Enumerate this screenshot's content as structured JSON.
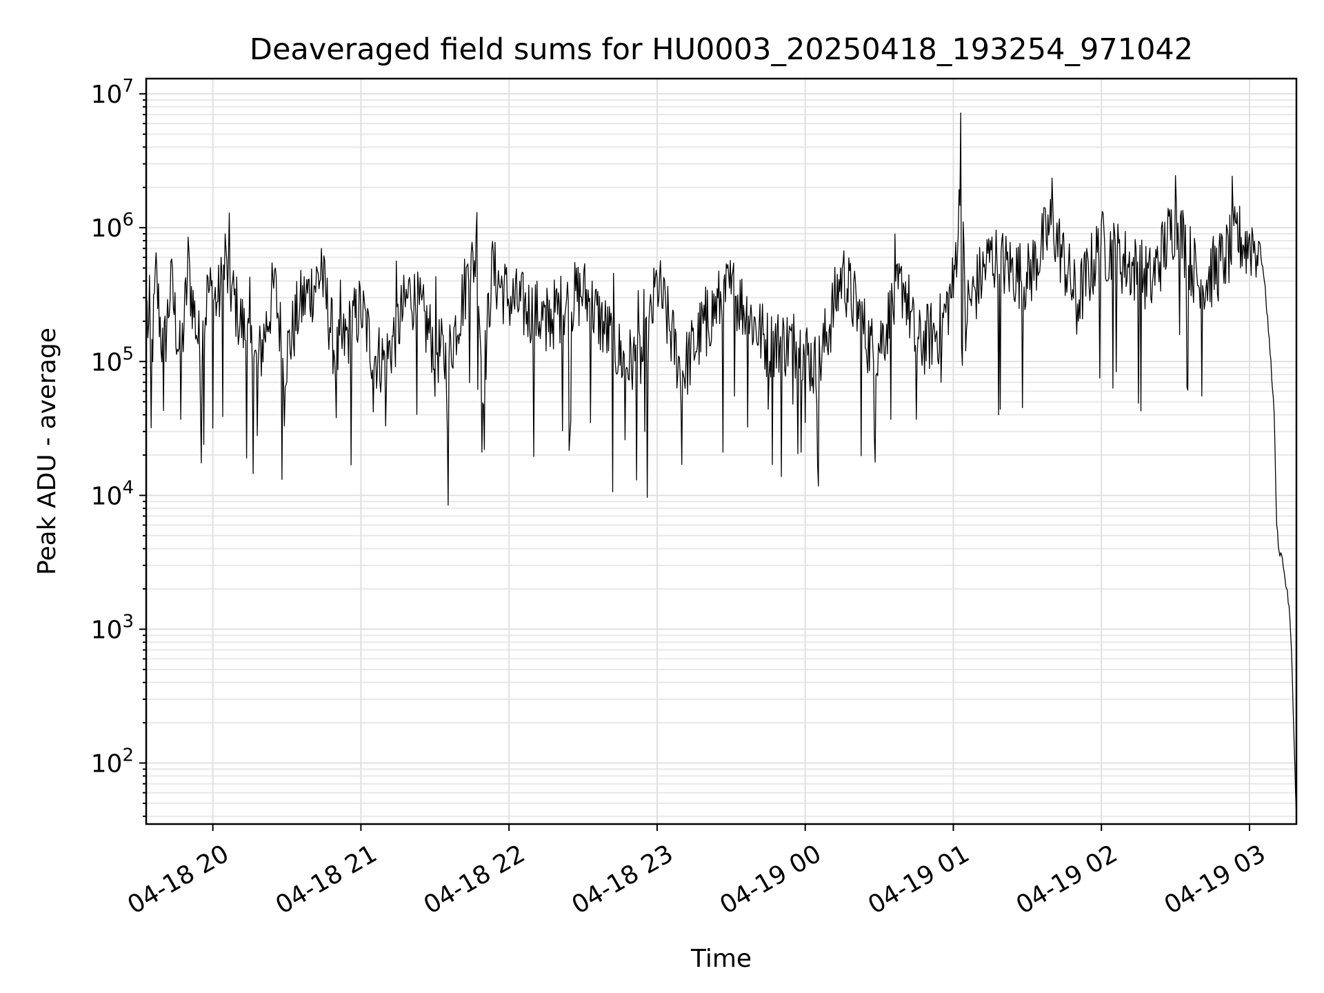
{
  "chart_data": {
    "type": "line",
    "title": "Deaveraged field sums for HU0003_20250418_193254_971042",
    "xlabel": "Time",
    "ylabel": "Peak ADU - average",
    "yscale": "log",
    "ylim": [
      35,
      13000000
    ],
    "xlim": [
      "04-18 19:33",
      "04-19 03:19"
    ],
    "grid": true,
    "x_tick_labels": [
      "04-18 20",
      "04-18 21",
      "04-18 22",
      "04-18 23",
      "04-19 00",
      "04-19 01",
      "04-19 02",
      "04-19 03"
    ],
    "y_tick_labels": [
      {
        "value": 100,
        "base": "10",
        "exp": "2"
      },
      {
        "value": 1000,
        "base": "10",
        "exp": "3"
      },
      {
        "value": 10000,
        "base": "10",
        "exp": "4"
      },
      {
        "value": 100000,
        "base": "10",
        "exp": "5"
      },
      {
        "value": 1000000,
        "base": "10",
        "exp": "6"
      },
      {
        "value": 10000000,
        "base": "10",
        "exp": "7"
      }
    ],
    "series": [
      {
        "color": "#000000",
        "points": [
          [
            "04-18 19:33",
            300000
          ],
          [
            "04-18 19:35",
            32000
          ],
          [
            "04-18 19:37",
            650000
          ],
          [
            "04-18 19:40",
            43000
          ],
          [
            "04-18 19:43",
            560000
          ],
          [
            "04-18 19:47",
            37000
          ],
          [
            "04-18 19:50",
            850000
          ],
          [
            "04-18 19:55",
            47000
          ],
          [
            "04-18 19:58",
            430000
          ],
          [
            "04-18 20:02",
            280000
          ],
          [
            "04-18 20:05",
            900000
          ],
          [
            "04-18 20:10",
            200000
          ],
          [
            "04-18 20:18",
            28000
          ],
          [
            "04-18 20:25",
            480000
          ],
          [
            "04-18 20:29",
            33000
          ],
          [
            "04-18 20:35",
            220000
          ],
          [
            "04-18 20:44",
            700000
          ],
          [
            "04-18 20:50",
            38000
          ],
          [
            "04-18 21:00",
            210000
          ],
          [
            "04-18 21:05",
            42000
          ],
          [
            "04-18 21:10",
            33000
          ],
          [
            "04-18 21:20",
            360000
          ],
          [
            "04-18 21:30",
            55000
          ],
          [
            "04-18 21:35",
            31000
          ],
          [
            "04-18 21:43",
            520000
          ],
          [
            "04-18 21:47",
            1300000
          ],
          [
            "04-18 21:49",
            21000
          ],
          [
            "04-18 21:50",
            22000
          ],
          [
            "04-18 21:53",
            680000
          ],
          [
            "04-18 22:00",
            260000
          ],
          [
            "04-18 22:15",
            120000
          ],
          [
            "04-18 22:30",
            320000
          ],
          [
            "04-18 22:47",
            26000
          ],
          [
            "04-18 22:55",
            30000
          ],
          [
            "04-18 23:00",
            420000
          ],
          [
            "04-18 23:10",
            17000
          ],
          [
            "04-18 23:20",
            110000
          ],
          [
            "04-18 23:30",
            320000
          ],
          [
            "04-18 23:45",
            44000
          ],
          [
            "04-18 23:55",
            48000
          ],
          [
            "04-19 00:00",
            35000
          ],
          [
            "04-19 00:05",
            17000
          ],
          [
            "04-19 00:15",
            500000
          ],
          [
            "04-19 00:28",
            28000
          ],
          [
            "04-19 00:40",
            360000
          ],
          [
            "04-19 00:45",
            37000
          ],
          [
            "04-19 00:55",
            70000
          ],
          [
            "04-19 01:00",
            300000
          ],
          [
            "04-19 01:03",
            7200000
          ],
          [
            "04-19 01:05",
            120000
          ],
          [
            "04-19 01:15",
            800000
          ],
          [
            "04-19 01:30",
            350000
          ],
          [
            "04-19 01:40",
            2350000
          ],
          [
            "04-19 01:50",
            160000
          ],
          [
            "04-19 02:00",
            1100000
          ],
          [
            "04-19 02:20",
            300000
          ],
          [
            "04-19 02:30",
            2450000
          ],
          [
            "04-19 02:40",
            250000
          ],
          [
            "04-19 02:50",
            600000
          ],
          [
            "04-19 02:55",
            1300000
          ],
          [
            "04-19 03:00",
            900000
          ],
          [
            "04-19 03:01",
            1000000
          ],
          [
            "04-19 03:04",
            780000
          ],
          [
            "04-19 03:06",
            400000
          ],
          [
            "04-19 03:08",
            150000
          ],
          [
            "04-19 03:10",
            40000
          ],
          [
            "04-19 03:11",
            6000
          ],
          [
            "04-19 03:12",
            3800
          ],
          [
            "04-19 03:13",
            3600
          ],
          [
            "04-19 03:14",
            2700
          ],
          [
            "04-19 03:15",
            2000
          ],
          [
            "04-19 03:16",
            1500
          ],
          [
            "04-19 03:17",
            700
          ],
          [
            "04-19 03:18",
            160
          ],
          [
            "04-19 03:19",
            40
          ]
        ]
      }
    ]
  }
}
